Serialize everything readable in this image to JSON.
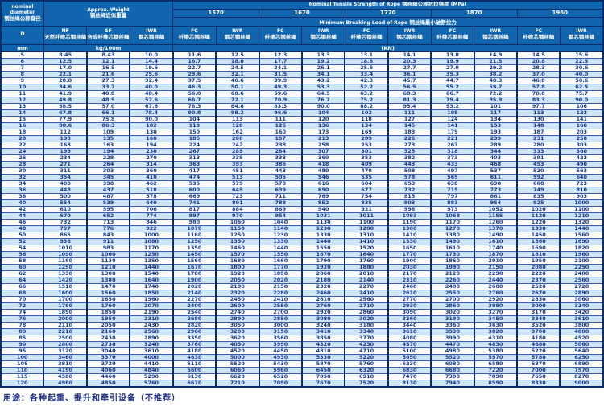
{
  "labels": {
    "diameter_en1": "nominal",
    "diameter_en2": "diameter",
    "diameter_cn": "钢丝绳公称直径",
    "weight_en": "Approx. Weight",
    "weight_cn": "钢丝绳近似重量",
    "strength_en": "Nominal Tensile Strength of Rope",
    "strength_cn": "钢丝绳公称抗拉强度",
    "strength_unit": "(MPa)",
    "breaking_en": "Minimum Breaking Load of Rope",
    "breaking_cn": "钢丝绳最小破断拉力",
    "d": "D",
    "unit_mm": "mm",
    "unit_weight": "kg/100m",
    "unit_load": "(KN)",
    "nf_en": "NF",
    "nf_cn": "天然纤维芯钢丝绳",
    "sf_en": "SF",
    "sf_cn": "合成纤维芯钢丝绳",
    "iwr_weight_en": "IWR",
    "iwr_weight_cn": "钢芯钢丝绳",
    "fc_en": "FC",
    "fc_cn": "纤维芯钢丝绳",
    "iwr_en": "IWR",
    "iwr_cn": "钢芯钢丝绳"
  },
  "table": {
    "strengths": [
      "1570",
      "1670",
      "1770",
      "1870",
      "1960"
    ],
    "columns": [
      "D",
      "NF",
      "SF",
      "IWR",
      "FC 1570",
      "IWR 1570",
      "FC 1670",
      "IWR 1670",
      "FC 1770",
      "IWR 1770",
      "FC 1870",
      "IWR 1870",
      "FC 1960",
      "IWR 1960"
    ],
    "rows": [
      [
        "5",
        "8.45",
        "8.43",
        "10.0",
        "11.6",
        "12.5",
        "12.3",
        "13.3",
        "13.1",
        "14.1",
        "13.8",
        "14.9",
        "14.5",
        "15.6"
      ],
      [
        "6",
        "12.5",
        "12.1",
        "14.4",
        "16.7",
        "18.0",
        "17.7",
        "19.2",
        "18.8",
        "20.3",
        "19.9",
        "21.5",
        "20.8",
        "22.5"
      ],
      [
        "7",
        "17.0",
        "16.5",
        "19.6",
        "22.7",
        "24.5",
        "24.1",
        "26.1",
        "25.6",
        "27.7",
        "27.0",
        "29.2",
        "28.3",
        "30.6"
      ],
      [
        "8",
        "22.1",
        "21.6",
        "25.6",
        "29.6",
        "32.1",
        "31.5",
        "34.1",
        "33.4",
        "36.1",
        "35.3",
        "38.2",
        "37.0",
        "40.0"
      ],
      [
        "9",
        "28.0",
        "27.3",
        "32.4",
        "37.5",
        "40.6",
        "39.9",
        "43.2",
        "42.3",
        "45.7",
        "44.7",
        "48.3",
        "46.8",
        "50.6"
      ],
      [
        "10",
        "34.6",
        "33.7",
        "40.0",
        "46.3",
        "50.1",
        "49.3",
        "53.3",
        "52.2",
        "56.5",
        "55.2",
        "59.7",
        "57.8",
        "62.5"
      ],
      [
        "11",
        "41.9",
        "40.8",
        "48.4",
        "56.0",
        "60.6",
        "59.6",
        "64.5",
        "63.2",
        "68.3",
        "66.7",
        "72.2",
        "70.0",
        "75.7"
      ],
      [
        "12",
        "49.8",
        "48.5",
        "57.6",
        "66.7",
        "72.1",
        "70.9",
        "76.7",
        "75.2",
        "81.3",
        "79.4",
        "85.9",
        "83.3",
        "90.0"
      ],
      [
        "13",
        "58.5",
        "57.0",
        "67.6",
        "78.3",
        "84.6",
        "83.3",
        "90.0",
        "88.2",
        "95.4",
        "93.2",
        "101",
        "97.7",
        "106"
      ],
      [
        "14",
        "67.8",
        "66.1",
        "78.4",
        "90.8",
        "98.2",
        "96.6",
        "104",
        "102",
        "111",
        "108",
        "117",
        "113",
        "123"
      ],
      [
        "15",
        "77.9",
        "75.8",
        "90.0",
        "104",
        "113",
        "111",
        "120",
        "118",
        "127",
        "124",
        "134",
        "130",
        "141"
      ],
      [
        "16",
        "88.6",
        "86.3",
        "102",
        "119",
        "128",
        "126",
        "136",
        "134",
        "145",
        "141",
        "153",
        "148",
        "160"
      ],
      [
        "18",
        "112",
        "109",
        "130",
        "150",
        "162",
        "160",
        "173",
        "169",
        "183",
        "179",
        "193",
        "187",
        "203"
      ],
      [
        "20",
        "138",
        "135",
        "160",
        "185",
        "200",
        "197",
        "213",
        "209",
        "226",
        "221",
        "239",
        "231",
        "250"
      ],
      [
        "22",
        "168",
        "163",
        "194",
        "224",
        "242",
        "238",
        "258",
        "253",
        "273",
        "267",
        "289",
        "280",
        "303"
      ],
      [
        "24",
        "199",
        "194",
        "230",
        "267",
        "289",
        "284",
        "307",
        "301",
        "325",
        "318",
        "344",
        "333",
        "360"
      ],
      [
        "26",
        "234",
        "228",
        "270",
        "313",
        "339",
        "333",
        "360",
        "353",
        "382",
        "373",
        "403",
        "391",
        "423"
      ],
      [
        "28",
        "271",
        "264",
        "314",
        "363",
        "393",
        "386",
        "418",
        "409",
        "443",
        "433",
        "468",
        "453",
        "490"
      ],
      [
        "30",
        "311",
        "303",
        "360",
        "417",
        "451",
        "443",
        "480",
        "470",
        "508",
        "497",
        "537",
        "520",
        "563"
      ],
      [
        "32",
        "354",
        "345",
        "410",
        "474",
        "513",
        "505",
        "546",
        "535",
        "578",
        "565",
        "611",
        "592",
        "640"
      ],
      [
        "34",
        "400",
        "390",
        "462",
        "535",
        "579",
        "570",
        "616",
        "604",
        "653",
        "638",
        "690",
        "668",
        "723"
      ],
      [
        "36",
        "448",
        "437",
        "518",
        "600",
        "649",
        "639",
        "690",
        "677",
        "732",
        "715",
        "773",
        "749",
        "810"
      ],
      [
        "38",
        "500",
        "487",
        "578",
        "669",
        "723",
        "711",
        "769",
        "754",
        "815",
        "797",
        "861",
        "835",
        "903"
      ],
      [
        "40",
        "554",
        "539",
        "640",
        "741",
        "801",
        "788",
        "852",
        "835",
        "903",
        "883",
        "954",
        "925",
        "1000"
      ],
      [
        "42",
        "610",
        "595",
        "706",
        "817",
        "884",
        "869",
        "940",
        "921",
        "996",
        "973",
        "1052",
        "1020",
        "1100"
      ],
      [
        "44",
        "670",
        "652",
        "774",
        "897",
        "970",
        "954",
        "1031",
        "1011",
        "1093",
        "1068",
        "1155",
        "1120",
        "1210"
      ],
      [
        "46",
        "732",
        "713",
        "846",
        "980",
        "1060",
        "1040",
        "1130",
        "1100",
        "1190",
        "1170",
        "1260",
        "1220",
        "1320"
      ],
      [
        "48",
        "797",
        "776",
        "922",
        "1070",
        "1150",
        "1140",
        "1230",
        "1200",
        "1300",
        "1270",
        "1370",
        "1330",
        "1440"
      ],
      [
        "50",
        "865",
        "843",
        "1000",
        "1160",
        "1250",
        "1230",
        "1330",
        "1310",
        "1410",
        "1380",
        "1490",
        "1450",
        "1560"
      ],
      [
        "52",
        "936",
        "911",
        "1080",
        "1250",
        "1350",
        "1330",
        "1440",
        "1410",
        "1530",
        "1490",
        "1610",
        "1560",
        "1690"
      ],
      [
        "54",
        "1010",
        "983",
        "1170",
        "1350",
        "1460",
        "1440",
        "1550",
        "1520",
        "1650",
        "1610",
        "1740",
        "1690",
        "1820"
      ],
      [
        "56",
        "1090",
        "1060",
        "1250",
        "1450",
        "1570",
        "1550",
        "1670",
        "1640",
        "1770",
        "1730",
        "1870",
        "1810",
        "1960"
      ],
      [
        "58",
        "1160",
        "1130",
        "1350",
        "1560",
        "1680",
        "1660",
        "1790",
        "1760",
        "1900",
        "1860",
        "2010",
        "1950",
        "2100"
      ],
      [
        "60",
        "1250",
        "1210",
        "1440",
        "1670",
        "1800",
        "1770",
        "1920",
        "1880",
        "2030",
        "1990",
        "2150",
        "2080",
        "2250"
      ],
      [
        "62",
        "1330",
        "1300",
        "1540",
        "1780",
        "1920",
        "1890",
        "2060",
        "2010",
        "2170",
        "2120",
        "2290",
        "2220",
        "2400"
      ],
      [
        "64",
        "1420",
        "1380",
        "1640",
        "1900",
        "2050",
        "2020",
        "2180",
        "2140",
        "2310",
        "2260",
        "2440",
        "2370",
        "2560"
      ],
      [
        "66",
        "1510",
        "1470",
        "1740",
        "2020",
        "2180",
        "2150",
        "2320",
        "2270",
        "2460",
        "2400",
        "2600",
        "2520",
        "2720"
      ],
      [
        "68",
        "1600",
        "1560",
        "1850",
        "2140",
        "2320",
        "2280",
        "2460",
        "2410",
        "2610",
        "2550",
        "2760",
        "2670",
        "2890"
      ],
      [
        "70",
        "1700",
        "1650",
        "1960",
        "2270",
        "2450",
        "2410",
        "2610",
        "2560",
        "2770",
        "2700",
        "2920",
        "2830",
        "3060"
      ],
      [
        "72",
        "1790",
        "1760",
        "2070",
        "2400",
        "2600",
        "2550",
        "2760",
        "2710",
        "2930",
        "2860",
        "3090",
        "3000",
        "3240"
      ],
      [
        "74",
        "1890",
        "1850",
        "2190",
        "2540",
        "2740",
        "2700",
        "2920",
        "2860",
        "3090",
        "3020",
        "3270",
        "3170",
        "3420"
      ],
      [
        "76",
        "2000",
        "1950",
        "2310",
        "2680",
        "2890",
        "2850",
        "3080",
        "3020",
        "3260",
        "3190",
        "3450",
        "3340",
        "3610"
      ],
      [
        "78",
        "2110",
        "2050",
        "2430",
        "2820",
        "3050",
        "3000",
        "3240",
        "3180",
        "3440",
        "3360",
        "3630",
        "3520",
        "3800"
      ],
      [
        "80",
        "2210",
        "2160",
        "2560",
        "2960",
        "3200",
        "3150",
        "3410",
        "3340",
        "3610",
        "3530",
        "3820",
        "3700",
        "4000"
      ],
      [
        "85",
        "2500",
        "2430",
        "2890",
        "3350",
        "3620",
        "3560",
        "3850",
        "3770",
        "4080",
        "3990",
        "4310",
        "4180",
        "4520"
      ],
      [
        "90",
        "2800",
        "2730",
        "3240",
        "3760",
        "4050",
        "3990",
        "4320",
        "4230",
        "4570",
        "4470",
        "4830",
        "4680",
        "5060"
      ],
      [
        "95",
        "3120",
        "3040",
        "3610",
        "4180",
        "4520",
        "4450",
        "4810",
        "4710",
        "5100",
        "4980",
        "5380",
        "5220",
        "5640"
      ],
      [
        "100",
        "3460",
        "3370",
        "4000",
        "4630",
        "5000",
        "4930",
        "5330",
        "5220",
        "5650",
        "5520",
        "5970",
        "5780",
        "6250"
      ],
      [
        "105",
        "3810",
        "3720",
        "4410",
        "5110",
        "5520",
        "5430",
        "5870",
        "5760",
        "6230",
        "6080",
        "6580",
        "6370",
        "6890"
      ],
      [
        "110",
        "4190",
        "4060",
        "4840",
        "5600",
        "6060",
        "5960",
        "6450",
        "6320",
        "6830",
        "6680",
        "7220",
        "7000",
        "7570"
      ],
      [
        "115",
        "4580",
        "4460",
        "5290",
        "6130",
        "6620",
        "6520",
        "7050",
        "6910",
        "7470",
        "7300",
        "7890",
        "7650",
        "8270"
      ],
      [
        "120",
        "4980",
        "4850",
        "5760",
        "6670",
        "7210",
        "7090",
        "7670",
        "7520",
        "8130",
        "7940",
        "8590",
        "8330",
        "9000"
      ]
    ]
  },
  "footer": {
    "usage": "用途：各种起重、提升和牵引设备（不推荐）"
  },
  "colors": {
    "header_bg": "#1165af",
    "stripe": "#cfe4f6",
    "data_text": "#16388f",
    "border": "#0a2d68"
  }
}
